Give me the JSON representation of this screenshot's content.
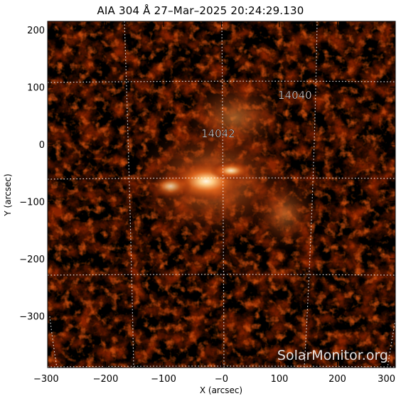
{
  "title": "AIA 304 Å 27–Mar–2025  20:24:29.130",
  "axes": {
    "x_label": "X (arcsec)",
    "y_label": "Y (arcsec)",
    "x_ticks": [
      {
        "value": -300,
        "label": "−300"
      },
      {
        "value": -200,
        "label": "−200"
      },
      {
        "value": -100,
        "label": "−100"
      },
      {
        "value": 0,
        "label": "−0"
      },
      {
        "value": 100,
        "label": "100"
      },
      {
        "value": 200,
        "label": "200"
      },
      {
        "value": 300,
        "label": "300"
      }
    ],
    "y_ticks": [
      {
        "value": 200,
        "label": "200"
      },
      {
        "value": 100,
        "label": "100"
      },
      {
        "value": 0,
        "label": "0"
      },
      {
        "value": -100,
        "label": "−100"
      },
      {
        "value": -200,
        "label": "−200"
      },
      {
        "value": -300,
        "label": "−300"
      }
    ],
    "x_range": [
      -300,
      300
    ],
    "y_range": [
      -390,
      215
    ]
  },
  "active_regions": [
    {
      "number": "14042",
      "x": -3,
      "y": 10
    },
    {
      "number": "14040",
      "x": 100,
      "y": 50
    }
  ],
  "watermark": "SolarMonitor.org",
  "colors": {
    "background": "#000000",
    "colormap_dark": "#2a0500",
    "colormap_mid": "#a83200",
    "colormap_bright": "#ff8a2a",
    "colormap_peak": "#fff3d8",
    "grid": "#ffffff"
  }
}
